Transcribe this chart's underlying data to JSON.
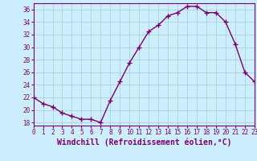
{
  "x": [
    0,
    1,
    2,
    3,
    4,
    5,
    6,
    7,
    8,
    9,
    10,
    11,
    12,
    13,
    14,
    15,
    16,
    17,
    18,
    19,
    20,
    21,
    22,
    23
  ],
  "y": [
    22.0,
    21.0,
    20.5,
    19.5,
    19.0,
    18.5,
    18.5,
    18.0,
    21.5,
    24.5,
    27.5,
    30.0,
    32.5,
    33.5,
    35.0,
    35.5,
    36.5,
    36.5,
    35.5,
    35.5,
    34.0,
    30.5,
    26.0,
    24.5
  ],
  "xlim": [
    0,
    23
  ],
  "ylim": [
    17.5,
    37
  ],
  "yticks": [
    18,
    20,
    22,
    24,
    26,
    28,
    30,
    32,
    34,
    36
  ],
  "xticks": [
    0,
    1,
    2,
    3,
    4,
    5,
    6,
    7,
    8,
    9,
    10,
    11,
    12,
    13,
    14,
    15,
    16,
    17,
    18,
    19,
    20,
    21,
    22,
    23
  ],
  "xlabel": "Windchill (Refroidissement éolien,°C)",
  "line_color": "#7b0070",
  "marker": "+",
  "marker_size": 4,
  "linewidth": 1.0,
  "bg_color": "#cceeff",
  "grid_color": "#aacccc",
  "tick_label_fontsize": 5.5,
  "xlabel_fontsize": 7.0
}
